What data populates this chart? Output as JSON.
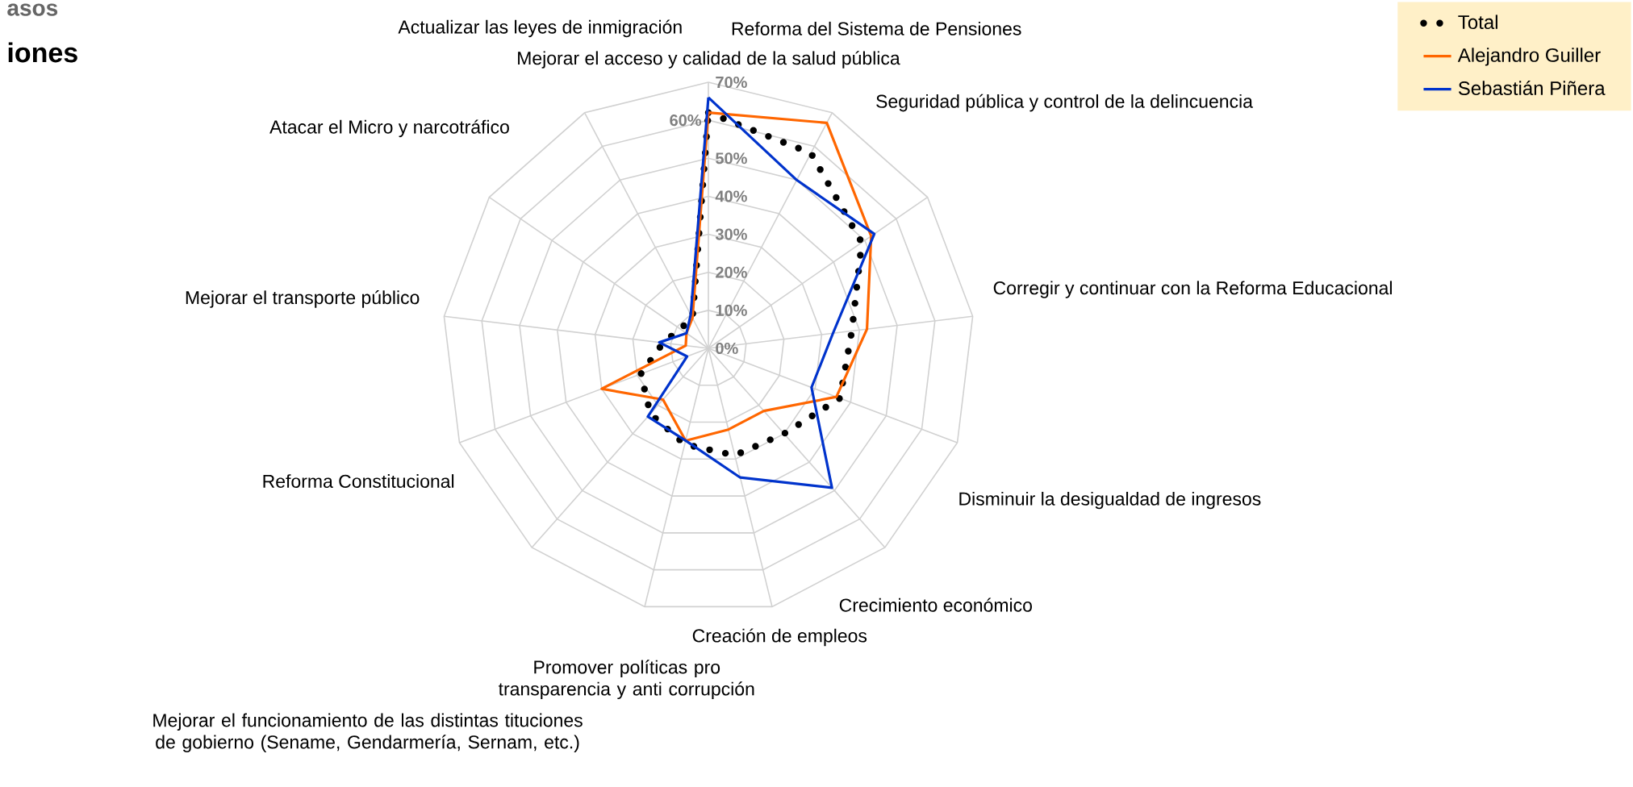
{
  "chart_data": {
    "type": "radar",
    "title": "asos",
    "subtitle": "iones",
    "categories": [
      "Mejorar el acceso y calidad de la salud pública",
      "Reforma del Sistema de Pensiones",
      "Seguridad pública y control de la delincuencia",
      "Corregir y continuar con la Reforma Educacional",
      "Disminuir la desigualdad de ingresos",
      "Crecimiento económico",
      "Creación de empleos",
      "Promover políticas pro transparencia y anti corrupción",
      "Mejorar el funcionamiento de las distintas tituciones de gobierno (Sename, Gendarmería, Sernam, etc.)",
      "Reforma Constitucional",
      "Mejorar el transporte público",
      "Atacar el Micro y narcotráfico",
      "Actualizar las leyes de inmigración"
    ],
    "ylim": [
      0,
      70
    ],
    "yticks": [
      {
        "value": 0,
        "label": "0%"
      },
      {
        "value": 10,
        "label": "10%"
      },
      {
        "value": 20,
        "label": "20%"
      },
      {
        "value": 30,
        "label": "30%"
      },
      {
        "value": 40,
        "label": "40%"
      },
      {
        "value": 50,
        "label": "50%"
      },
      {
        "value": 60,
        "label": "60%"
      },
      {
        "value": 70,
        "label": "70%"
      }
    ],
    "grid": true,
    "legend": "top right",
    "series": [
      {
        "name": "Total",
        "color": "#000000",
        "line_style": "dotted",
        "values": [
          62,
          58,
          49,
          38,
          37,
          30,
          29,
          26,
          23,
          19,
          12,
          9,
          9
        ]
      },
      {
        "name": "Alejandro Guiller",
        "color": "#ff6600",
        "line_style": "solid",
        "values": [
          62,
          67,
          52,
          42,
          36,
          22,
          22,
          25,
          18,
          30,
          6,
          7,
          9
        ]
      },
      {
        "name": "Sebastián Piñera",
        "color": "#0033cc",
        "line_style": "solid",
        "values": [
          66,
          50,
          53,
          33,
          29,
          49,
          35,
          25,
          24,
          6,
          13,
          7,
          10
        ]
      }
    ]
  }
}
